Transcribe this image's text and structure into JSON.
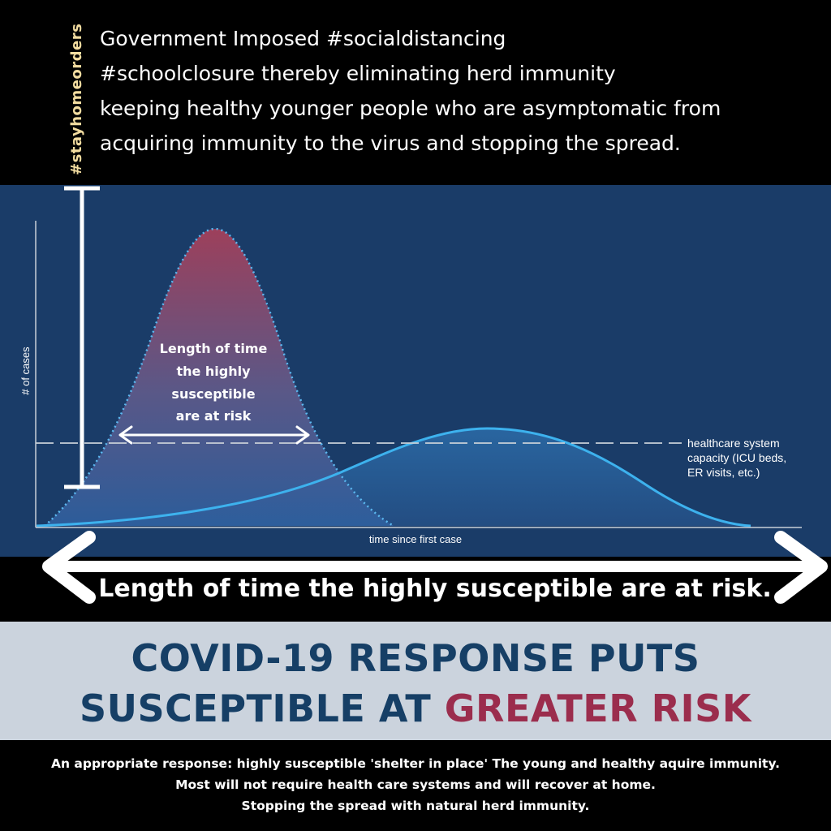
{
  "header": {
    "lines": [
      "Government Imposed #socialdistancing",
      "#schoolclosure thereby eliminating herd immunity",
      "keeping healthy younger people who are asymptomatic from",
      "acquiring immunity to the virus and stopping the spread."
    ],
    "vertical_hashtag": "#stayhomeorders"
  },
  "graph": {
    "ylabel": "# of cases",
    "xlabel": "time since first case",
    "inner_label_lines": [
      "Length of time",
      "the highly",
      "susceptible",
      "are at risk"
    ],
    "capacity_label_lines": [
      "healthcare system",
      "capacity (ICU beds,",
      "ER visits, etc.)"
    ],
    "colors": {
      "panel": "#1a3c68",
      "peak_top": "#a8405a",
      "peak_bottom": "#2e5f9e",
      "flat_curve": "#3db2ee",
      "capacity_line": "#c8cfd8"
    }
  },
  "bottom_arrow": {
    "caption": "Length of time the highly susceptible are at risk."
  },
  "headline": {
    "line1": "COVID-19 RESPONSE PUTS",
    "line2_prefix": "SUSCEPTIBLE AT ",
    "line2_accent": "GREATER RISK",
    "colors": {
      "main": "#163f66",
      "accent": "#9b2d4d",
      "band": "#cbd3dd"
    }
  },
  "footer": {
    "lines": [
      "An appropriate response: highly susceptible 'shelter in place' The young and healthy aquire immunity.",
      "Most will not require health care systems and will recover at home.",
      "Stopping the spread with natural herd immunity."
    ]
  }
}
